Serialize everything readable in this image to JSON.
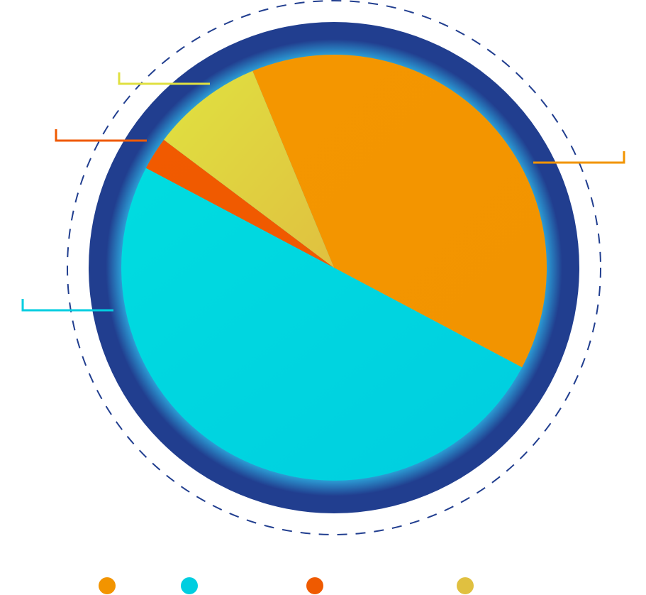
{
  "chart_data": {
    "type": "pie",
    "title": "",
    "categories": [
      "",
      "",
      "",
      ""
    ],
    "values": [
      39,
      50,
      2.5,
      8.5
    ],
    "unit": "%",
    "colors": [
      "#F29400",
      "#00CEE0",
      "#EF5A00",
      "#E0C040"
    ],
    "colors_light": [
      "#F49600",
      "#00DCE0",
      "#F15A00",
      "#E0E240"
    ],
    "leader_colors": [
      "#F29400",
      "#00CEE0",
      "#EF5A00",
      "#E0E040"
    ],
    "legend": {
      "placement": "bottom",
      "labels": [
        "",
        "",
        "",
        ""
      ]
    },
    "ring_color": "#213E8F",
    "dash_ring_color": "#213E8F",
    "start_angle_deg": -22.5,
    "direction": "clockwise"
  }
}
